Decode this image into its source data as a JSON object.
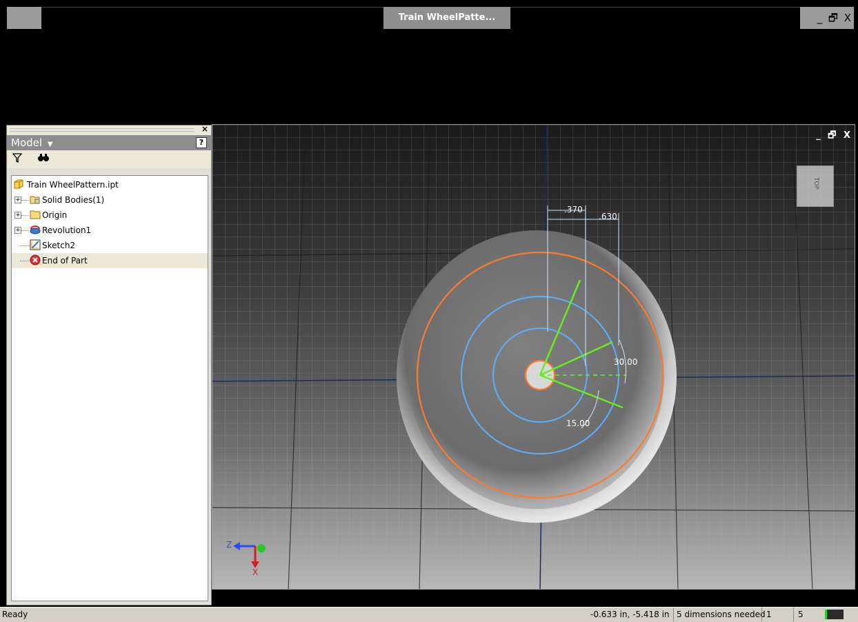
{
  "window": {
    "title": "Train WheelPatte...",
    "controls": [
      "_",
      "🗗",
      "X"
    ]
  },
  "browser": {
    "title": "Model",
    "title_arrow": "▼",
    "help_glyph": "?",
    "close_glyph": "×",
    "filter_icon": "⛛",
    "find_icon": "🔍",
    "tree": [
      {
        "label": "Train WheelPattern.ipt",
        "icon": "part-icon",
        "expandable": false
      },
      {
        "label": "Solid Bodies(1)",
        "icon": "solid-bodies-icon",
        "expandable": true
      },
      {
        "label": "Origin",
        "icon": "folder-icon",
        "expandable": true
      },
      {
        "label": "Revolution1",
        "icon": "revolve-icon",
        "expandable": true
      },
      {
        "label": "Sketch2",
        "icon": "sketch-icon",
        "expandable": false
      },
      {
        "label": "End of Part",
        "icon": "end-of-part-icon",
        "expandable": false
      }
    ]
  },
  "viewport": {
    "controls": [
      "_",
      "🗗",
      "X"
    ],
    "viewcube_face": "TOP",
    "dimensions": {
      "dim1": ".370",
      "dim2": ".630",
      "angle1": "30.00",
      "angle2": "15.00"
    },
    "triad": {
      "z": "Z",
      "x": "X"
    },
    "colors": {
      "orange_circle": "#ff7a2a",
      "blue_circle": "#5ab0ff",
      "green_lines": "#66ee22",
      "dim_lines": "#cfe6ff"
    }
  },
  "status": {
    "ready": "Ready",
    "coords": "-0.633 in, -5.418 in",
    "dimensions_needed": "5 dimensions needed",
    "value1": "1",
    "value2": "5"
  }
}
